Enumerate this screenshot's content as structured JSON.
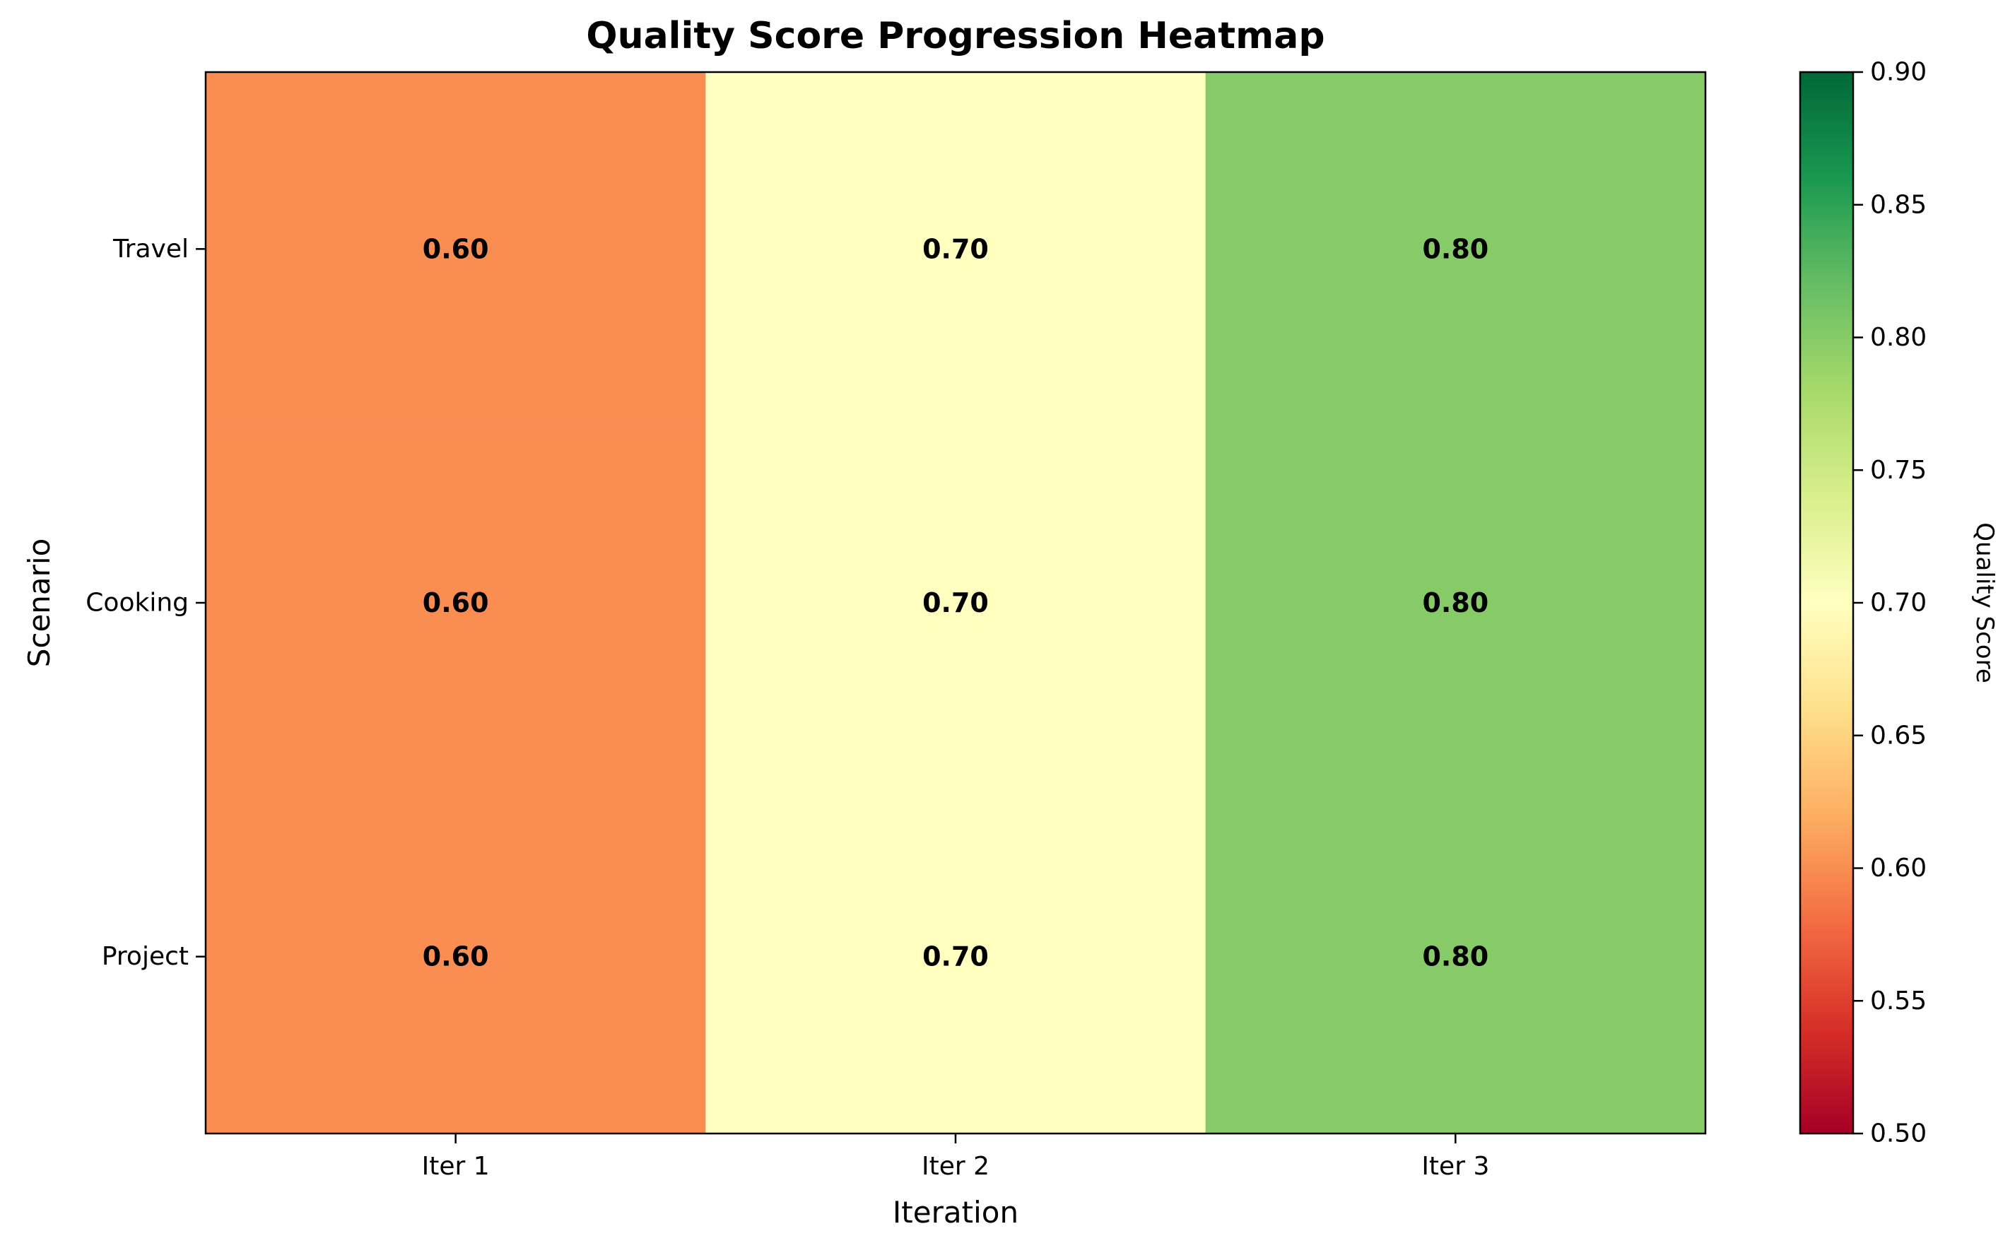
{
  "chart_data": {
    "type": "heatmap",
    "title": "Quality Score Progression Heatmap",
    "xlabel": "Iteration",
    "ylabel": "Scenario",
    "x_categories": [
      "Iter 1",
      "Iter 2",
      "Iter 3"
    ],
    "y_categories": [
      "Travel",
      "Cooking",
      "Project"
    ],
    "values": [
      [
        0.6,
        0.7,
        0.8
      ],
      [
        0.6,
        0.7,
        0.8
      ],
      [
        0.6,
        0.7,
        0.8
      ]
    ],
    "cell_labels": [
      [
        "0.60",
        "0.70",
        "0.80"
      ],
      [
        "0.60",
        "0.70",
        "0.80"
      ],
      [
        "0.60",
        "0.70",
        "0.80"
      ]
    ],
    "colorbar": {
      "label": "Quality Score",
      "range": [
        0.5,
        0.9
      ],
      "ticks": [
        0.5,
        0.55,
        0.6,
        0.65,
        0.7,
        0.75,
        0.8,
        0.85,
        0.9
      ],
      "tick_labels": [
        "0.50",
        "0.55",
        "0.60",
        "0.65",
        "0.70",
        "0.75",
        "0.80",
        "0.85",
        "0.90"
      ],
      "colormap": "RdYlGn"
    },
    "grid": false
  }
}
